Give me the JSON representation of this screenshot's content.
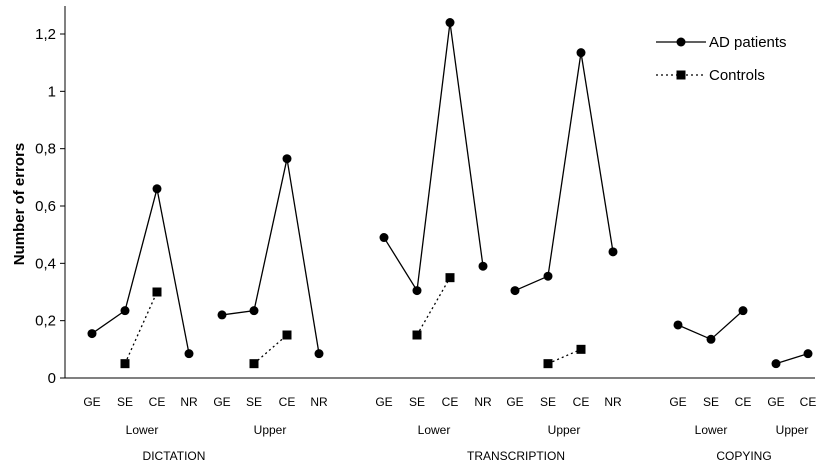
{
  "chart_data": {
    "type": "line",
    "title": "",
    "xlabel": "",
    "ylabel": "Number of errors",
    "ylim": [
      0,
      1.3
    ],
    "yticks": [
      "0",
      "0,2",
      "0,4",
      "0,6",
      "0,8",
      "1",
      "1,2"
    ],
    "grid": false,
    "legend_position": "top-right",
    "categories": [
      "GE",
      "SE",
      "CE",
      "NR",
      "GE",
      "SE",
      "CE",
      "NR",
      "GE",
      "SE",
      "CE",
      "NR",
      "GE",
      "SE",
      "CE",
      "NR",
      "GE",
      "SE",
      "CE",
      "GE",
      "CE"
    ],
    "groups": [
      {
        "label": "Lower",
        "task": "DICTATION"
      },
      {
        "label": "Upper",
        "task": "DICTATION"
      },
      {
        "label": "Lower",
        "task": "TRANSCRIPTION"
      },
      {
        "label": "Upper",
        "task": "TRANSCRIPTION"
      },
      {
        "label": "Lower",
        "task": "COPYING"
      },
      {
        "label": "Upper",
        "task": "COPYING"
      }
    ],
    "tasks": [
      "DICTATION",
      "TRANSCRIPTION",
      "COPYING"
    ],
    "series": [
      {
        "name": "AD patients",
        "style": "solid-circle",
        "color": "#000000",
        "segments": [
          [
            {
              "c": 0,
              "y": 0.155
            },
            {
              "c": 1,
              "y": 0.235
            },
            {
              "c": 2,
              "y": 0.66
            },
            {
              "c": 3,
              "y": 0.085
            }
          ],
          [
            {
              "c": 4,
              "y": 0.22
            },
            {
              "c": 5,
              "y": 0.235
            },
            {
              "c": 6,
              "y": 0.765
            },
            {
              "c": 7,
              "y": 0.085
            }
          ],
          [
            {
              "c": 8,
              "y": 0.49
            },
            {
              "c": 9,
              "y": 0.305
            },
            {
              "c": 10,
              "y": 1.24
            },
            {
              "c": 11,
              "y": 0.39
            }
          ],
          [
            {
              "c": 12,
              "y": 0.305
            },
            {
              "c": 13,
              "y": 0.355
            },
            {
              "c": 14,
              "y": 1.135
            },
            {
              "c": 15,
              "y": 0.44
            }
          ],
          [
            {
              "c": 16,
              "y": 0.185
            },
            {
              "c": 17,
              "y": 0.135
            },
            {
              "c": 18,
              "y": 0.235
            }
          ],
          [
            {
              "c": 19,
              "y": 0.05
            },
            {
              "c": 20,
              "y": 0.085
            }
          ]
        ]
      },
      {
        "name": "Controls",
        "style": "dotted-square",
        "color": "#000000",
        "segments": [
          [
            {
              "c": 1,
              "y": 0.05
            },
            {
              "c": 2,
              "y": 0.3
            }
          ],
          [
            {
              "c": 5,
              "y": 0.05
            },
            {
              "c": 6,
              "y": 0.15
            }
          ],
          [
            {
              "c": 9,
              "y": 0.15
            },
            {
              "c": 10,
              "y": 0.35
            }
          ],
          [
            {
              "c": 13,
              "y": 0.05
            },
            {
              "c": 14,
              "y": 0.1
            }
          ]
        ]
      }
    ]
  }
}
